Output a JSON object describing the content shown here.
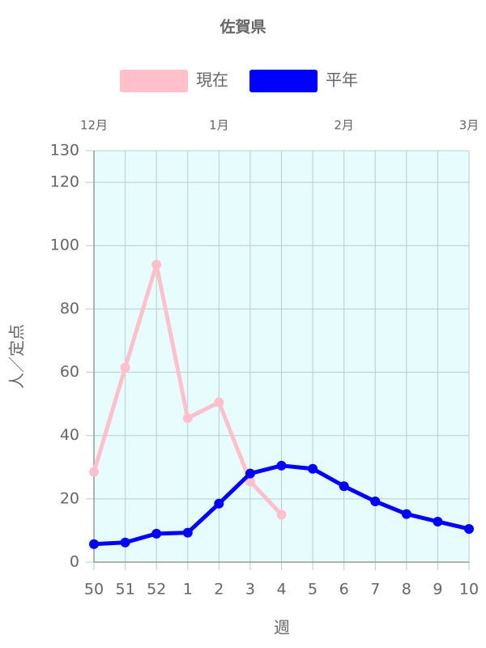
{
  "chart_data": {
    "type": "line",
    "title": "佐賀県",
    "categories": [
      "50",
      "51",
      "52",
      "1",
      "2",
      "3",
      "4",
      "5",
      "6",
      "7",
      "8",
      "9",
      "10"
    ],
    "top_categories": [
      "12月",
      null,
      null,
      null,
      "1月",
      null,
      null,
      null,
      "2月",
      null,
      null,
      null,
      "3月"
    ],
    "series": [
      {
        "name": "現在",
        "color": "#ffc0cb",
        "values": [
          28.5,
          61.5,
          94,
          45.5,
          50.5,
          25.5,
          15,
          null,
          null,
          null,
          null,
          null,
          null
        ]
      },
      {
        "name": "平年",
        "color": "#0000ff",
        "values": [
          5.7,
          6.2,
          9,
          9.3,
          18.5,
          28,
          30.5,
          29.5,
          24,
          19.2,
          15.2,
          12.8,
          10.5
        ]
      }
    ],
    "ylim": [
      0,
      130
    ],
    "yticks": [
      0,
      20,
      40,
      60,
      80,
      100,
      120,
      130
    ],
    "ylabel": "人／定点",
    "xlabel": "週",
    "grid": true,
    "background": "#e6fcfd"
  }
}
